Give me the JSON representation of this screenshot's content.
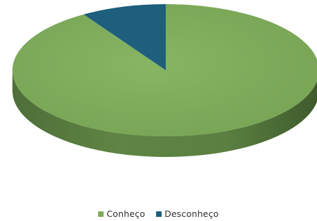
{
  "chart_data": {
    "type": "pie",
    "style": "3d",
    "series": [
      {
        "name": "Conheço",
        "value": 91,
        "color": "#7fac5c"
      },
      {
        "name": "Desconheço",
        "value": 9,
        "color": "#1d5f7c"
      }
    ],
    "legend": {
      "placement": "bottom",
      "items": [
        {
          "label": "Conheço",
          "color": "#7fac5c"
        },
        {
          "label": "Desconheço",
          "color": "#1d5f7c"
        }
      ]
    }
  }
}
